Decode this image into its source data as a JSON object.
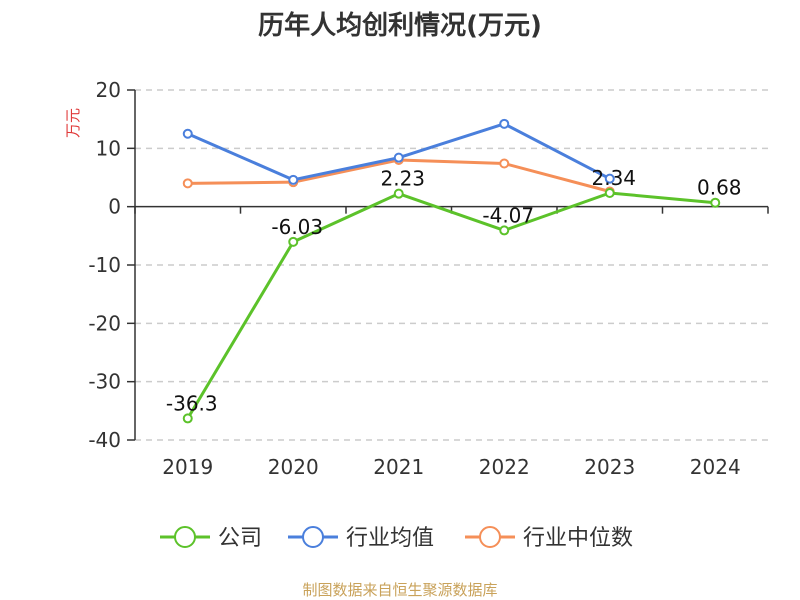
{
  "chart_data": {
    "type": "line",
    "title": "历年人均创利情况(万元)",
    "ylabel": "万元",
    "xlabel": "",
    "categories": [
      "2019",
      "2020",
      "2021",
      "2022",
      "2023",
      "2024"
    ],
    "ylim": [
      -40,
      20
    ],
    "yticks": [
      20,
      10,
      0,
      -10,
      -20,
      -30,
      -40
    ],
    "grid": true,
    "legend_position": "bottom",
    "series": [
      {
        "name": "公司",
        "color": "#5cc22a",
        "values": [
          -36.3,
          -6.03,
          2.23,
          -4.07,
          2.34,
          0.68
        ],
        "labels": [
          "-36.3",
          "-6.03",
          "2.23",
          "-4.07",
          "2.34",
          "0.68"
        ]
      },
      {
        "name": "行业均值",
        "color": "#4a7fdc",
        "values": [
          12.5,
          4.6,
          8.4,
          14.2,
          4.8,
          null
        ]
      },
      {
        "name": "行业中位数",
        "color": "#f58f58",
        "values": [
          4.0,
          4.2,
          8.0,
          7.4,
          2.6,
          null
        ]
      }
    ],
    "source": "制图数据来自恒生聚源数据库",
    "colors": {
      "ylabel": "#e03a3a",
      "source": "#c9a25a",
      "grid": "#cccccc",
      "axis": "#333333"
    }
  }
}
